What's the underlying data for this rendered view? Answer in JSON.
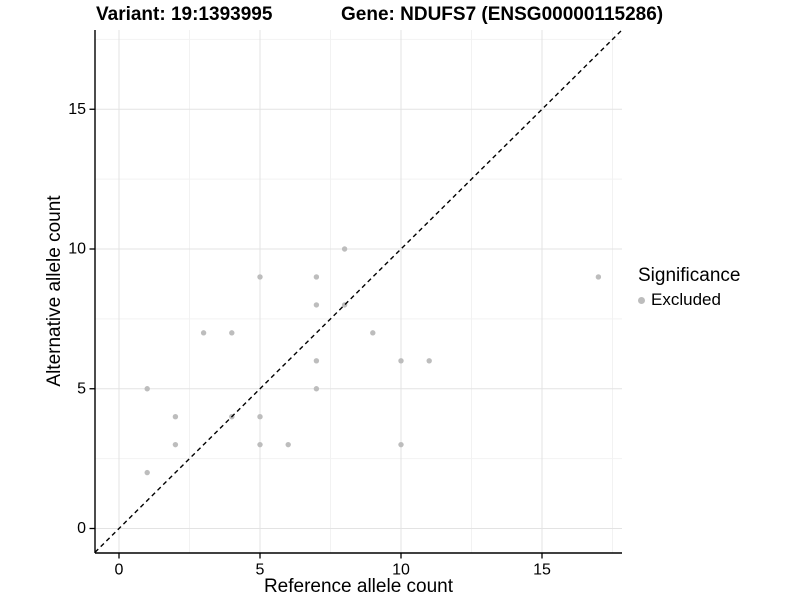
{
  "titles": {
    "variant": "Variant: 19:1393995",
    "gene": "Gene: NDUFS7 (ENSG00000115286)"
  },
  "axes": {
    "x_label": "Reference allele count",
    "y_label": "Alternative allele count"
  },
  "legend": {
    "title": "Significance",
    "items": [
      {
        "label": "Excluded",
        "color": "#bdbdbd"
      }
    ]
  },
  "colors": {
    "background": "#ffffff",
    "point": "#bdbdbd",
    "grid_major": "#e3e3e3",
    "grid_minor": "#f2f2f2",
    "axis_line": "#000000",
    "tick_text": "#000000",
    "reference_line": "#000000"
  },
  "chart_data": {
    "type": "scatter",
    "title": "Variant: 19:1393995 | Gene: NDUFS7 (ENSG00000115286)",
    "xlabel": "Reference allele count",
    "ylabel": "Alternative allele count",
    "xlim": [
      -0.85,
      17.84
    ],
    "ylim": [
      -0.88,
      17.84
    ],
    "x_ticks": [
      0,
      5,
      10,
      15
    ],
    "y_ticks": [
      0,
      5,
      10,
      15
    ],
    "x_minor_ticks": [
      2.5,
      7.5,
      12.5,
      17.5
    ],
    "y_minor_ticks": [
      2.5,
      7.5,
      12.5,
      17.5
    ],
    "grid": true,
    "legend_position": "right",
    "reference_line": {
      "type": "identity",
      "slope": 1,
      "intercept": 0,
      "style": "dashed"
    },
    "series": [
      {
        "name": "Excluded",
        "color": "#bdbdbd",
        "points": [
          [
            1,
            2
          ],
          [
            1,
            5
          ],
          [
            2,
            3
          ],
          [
            2,
            4
          ],
          [
            3,
            7
          ],
          [
            4,
            4
          ],
          [
            4,
            7
          ],
          [
            5,
            3
          ],
          [
            5,
            4
          ],
          [
            5,
            9
          ],
          [
            6,
            3
          ],
          [
            7,
            5
          ],
          [
            7,
            6
          ],
          [
            7,
            8
          ],
          [
            7,
            9
          ],
          [
            8,
            8
          ],
          [
            8,
            10
          ],
          [
            9,
            7
          ],
          [
            10,
            3
          ],
          [
            10,
            6
          ],
          [
            11,
            6
          ],
          [
            17,
            9
          ]
        ]
      }
    ]
  }
}
